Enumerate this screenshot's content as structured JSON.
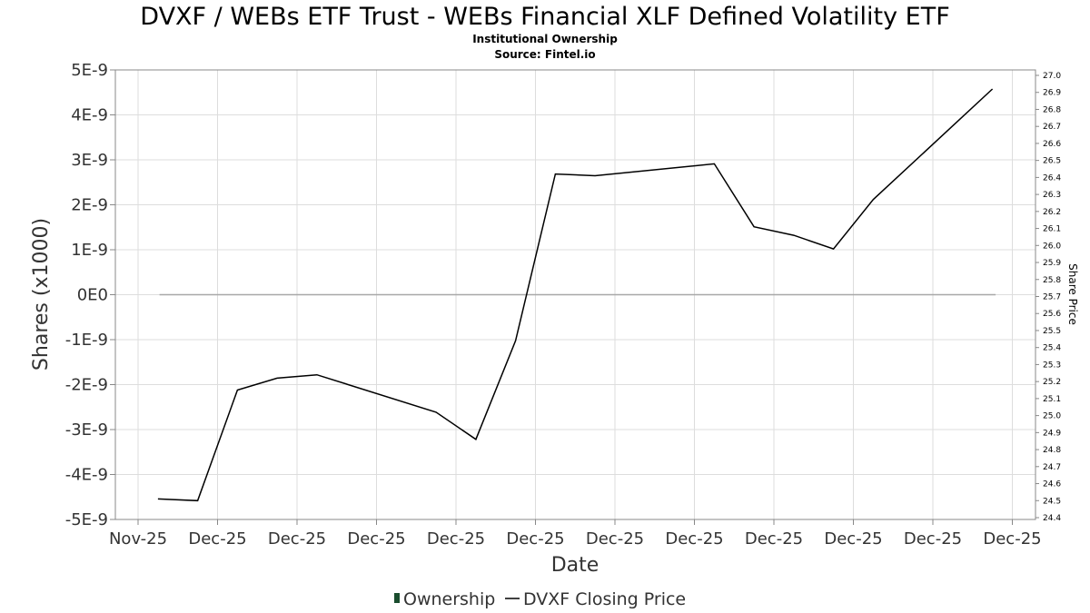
{
  "title": "DVXF / WEBs ETF Trust - WEBs Financial XLF Defined Volatility ETF",
  "subtitle": "Institutional Ownership",
  "source": "Source: Fintel.io",
  "chart_data": {
    "type": "line",
    "xlabel": "Date",
    "ylabel_left": "Shares (x1000)",
    "ylabel_right": "Share Price",
    "x_tick_labels": [
      "Nov-25",
      "Dec-25",
      "Dec-25",
      "Dec-25",
      "Dec-25",
      "Dec-25",
      "Dec-25",
      "Dec-25",
      "Dec-25",
      "Dec-25",
      "Dec-25",
      "Dec-25"
    ],
    "left_axis": {
      "range": [
        -5e-09,
        5e-09
      ],
      "ticks": [
        5e-09,
        4e-09,
        3e-09,
        2e-09,
        1e-09,
        0,
        -1e-09,
        -2e-09,
        -3e-09,
        -4e-09,
        -5e-09
      ],
      "tick_labels": [
        "5E-9",
        "4E-9",
        "3E-9",
        "2E-9",
        "1E-9",
        "0E0",
        "-1E-9",
        "-2E-9",
        "-3E-9",
        "-4E-9",
        "-5E-9"
      ]
    },
    "right_axis": {
      "range": [
        24.4,
        27.0
      ],
      "tick_labels": [
        "27.0",
        "26.9",
        "26.8",
        "26.7",
        "26.6",
        "26.5",
        "26.4",
        "26.3",
        "26.2",
        "26.1",
        "26.0",
        "25.9",
        "25.8",
        "25.7",
        "25.6",
        "25.5",
        "25.4",
        "25.3",
        "25.2",
        "25.1",
        "25.0",
        "24.9",
        "24.8",
        "24.7",
        "24.6",
        "24.5",
        "24.4"
      ]
    },
    "grid": true,
    "legend_placement": "bottom-center",
    "series": [
      {
        "name": "Ownership",
        "axis": "left",
        "color": "#1a4d2e",
        "x_index": [
          0.27,
          10.79
        ],
        "values": [
          0,
          0
        ]
      },
      {
        "name": "DVXF Closing Price",
        "axis": "right",
        "color": "#000000",
        "x_index": [
          0.25,
          0.75,
          1.25,
          1.75,
          2.25,
          3.75,
          4.25,
          4.75,
          5.25,
          5.75,
          7.25,
          7.75,
          8.25,
          8.75,
          9.25,
          10.75
        ],
        "values": [
          24.51,
          24.5,
          25.15,
          25.22,
          25.24,
          25.02,
          24.86,
          25.44,
          26.42,
          26.41,
          26.48,
          26.11,
          26.06,
          25.98,
          26.27,
          26.92
        ]
      }
    ]
  }
}
